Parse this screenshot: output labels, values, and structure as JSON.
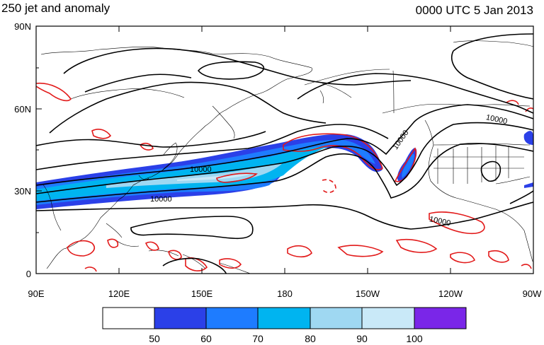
{
  "header": {
    "title_left": "250 jet and anomaly",
    "title_right": "0000 UTC 5 Jan 2013"
  },
  "axes": {
    "lat_labels": [
      "90N",
      "60N",
      "30N",
      "0"
    ],
    "lon_labels": [
      "90E",
      "120E",
      "150E",
      "180",
      "150W",
      "120W",
      "90W"
    ]
  },
  "contour_labels": [
    "10000",
    "10000",
    "10000",
    "10000",
    "10000"
  ],
  "colorbar": {
    "levels": [
      "50",
      "60",
      "70",
      "80",
      "90",
      "100"
    ],
    "colors": [
      "#ffffff",
      "#2b40e8",
      "#1e7cff",
      "#00b4f0",
      "#9fd8f2",
      "#c9e9f8",
      "#7a26e8"
    ]
  }
}
